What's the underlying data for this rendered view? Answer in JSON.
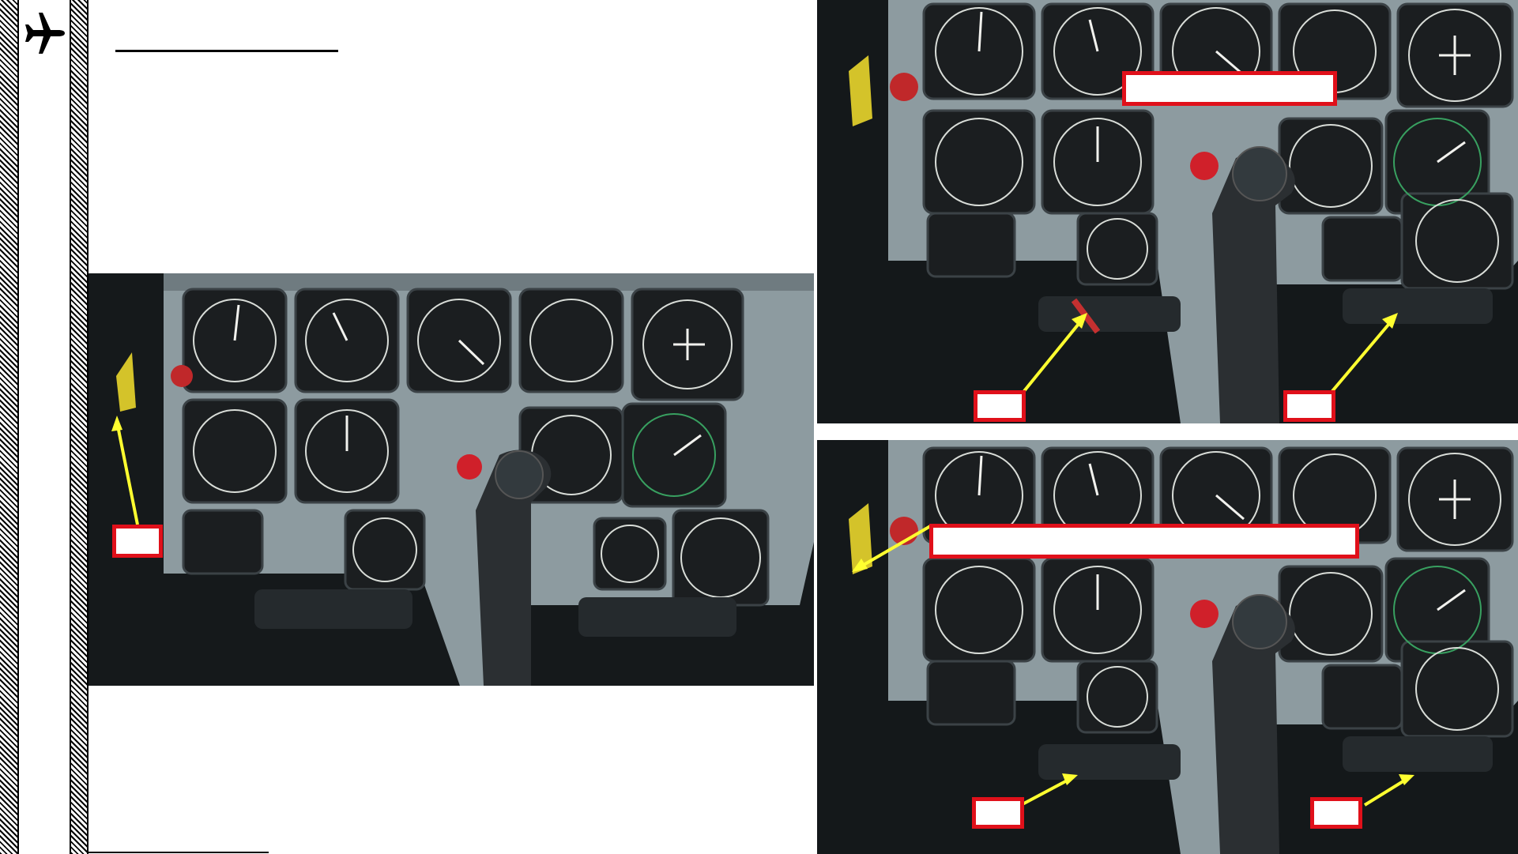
{
  "page": {
    "title": "",
    "body_text": ""
  },
  "panels": {
    "main": {
      "callout_text": ""
    },
    "top_right": {
      "callout_wide_text": "",
      "callout_left_text": "",
      "callout_right_text": ""
    },
    "bottom_right": {
      "callout_wide_text": "",
      "callout_left_text": "",
      "callout_right_text": ""
    }
  },
  "colors": {
    "callout_border": "#e0101a",
    "arrow": "#ffff30",
    "panel_grey": "#8d9ba0"
  },
  "icons": {
    "logo": "airplane-icon"
  }
}
